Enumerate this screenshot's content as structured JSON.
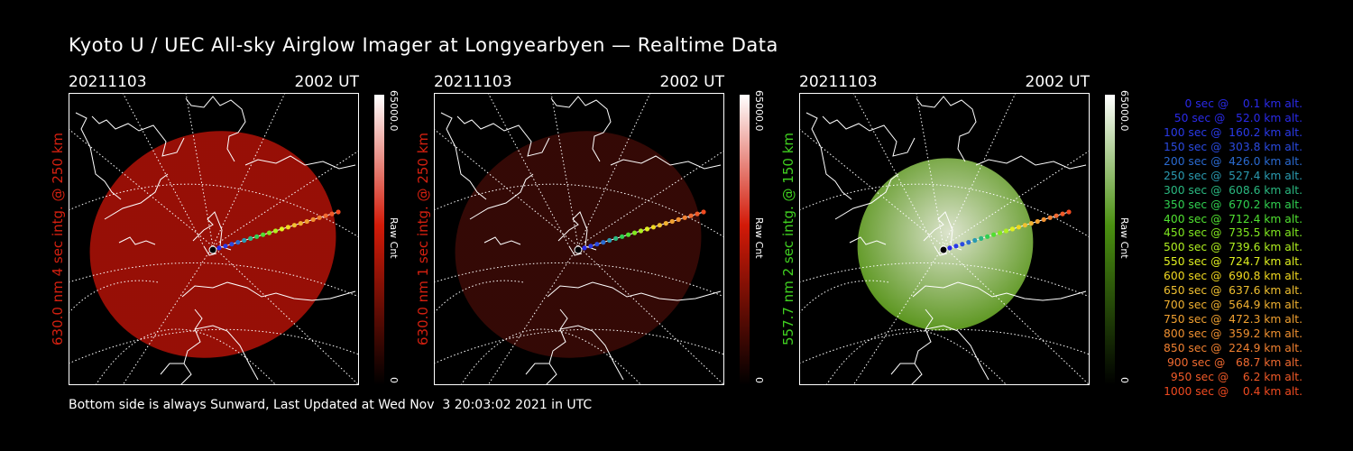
{
  "title": "Kyoto U / UEC All-sky Airglow Imager at Longyearbyen — Realtime Data",
  "panels": [
    {
      "date": "20211103",
      "time": "2002 UT",
      "ylabel": "630.0 nm 4 sec intg. @ 250 km",
      "label_color": "#d42010",
      "colorbar_max": "65000.0",
      "colorbar_min": "0",
      "colorbar_unit": "Raw Cnt",
      "image_color": "#b81208",
      "image_opacity": 0.82,
      "colorbar_color": "#d21a08"
    },
    {
      "date": "20211103",
      "time": "2002 UT",
      "ylabel": "630.0 nm 1 sec intg. @ 250 km",
      "label_color": "#d42010",
      "colorbar_max": "65000.0",
      "colorbar_min": "0",
      "colorbar_unit": "Raw Cnt",
      "image_color": "#3a0a06",
      "image_opacity": 0.9,
      "colorbar_color": "#d21a08"
    },
    {
      "date": "20211103",
      "time": "2002 UT",
      "ylabel": "557.7 nm 2 sec intg. @ 150 km",
      "label_color": "#40d020",
      "colorbar_max": "65000.0",
      "colorbar_min": "0",
      "colorbar_unit": "Raw Cnt",
      "image_color": "#5a9a18",
      "image_opacity": 0.95,
      "colorbar_color": "#4a9010"
    }
  ],
  "footer": "Bottom side is always Sunward, Last Updated at Wed Nov  3 20:03:02 2021 in UTC",
  "trajectory_legend": [
    {
      "text": "   0 sec @    0.1 km alt.",
      "color": "#2a2ae8"
    },
    {
      "text": "  50 sec @   52.0 km alt.",
      "color": "#2a2ae8"
    },
    {
      "text": " 100 sec @  160.2 km alt.",
      "color": "#2a3ae8"
    },
    {
      "text": " 150 sec @  303.8 km alt.",
      "color": "#2a4ae0"
    },
    {
      "text": " 200 sec @  426.0 km alt.",
      "color": "#2a6ad0"
    },
    {
      "text": " 250 sec @  527.4 km alt.",
      "color": "#2a9ab0"
    },
    {
      "text": " 300 sec @  608.6 km alt.",
      "color": "#2ab880"
    },
    {
      "text": " 350 sec @  670.2 km alt.",
      "color": "#30d050"
    },
    {
      "text": " 400 sec @  712.4 km alt.",
      "color": "#50e030"
    },
    {
      "text": " 450 sec @  735.5 km alt.",
      "color": "#80e820"
    },
    {
      "text": " 500 sec @  739.6 km alt.",
      "color": "#b0f020"
    },
    {
      "text": " 550 sec @  724.7 km alt.",
      "color": "#e0f020"
    },
    {
      "text": " 600 sec @  690.8 km alt.",
      "color": "#f0d820"
    },
    {
      "text": " 650 sec @  637.6 km alt.",
      "color": "#f0c030"
    },
    {
      "text": " 700 sec @  564.9 km alt.",
      "color": "#f0b030"
    },
    {
      "text": " 750 sec @  472.3 km alt.",
      "color": "#f0a030"
    },
    {
      "text": " 800 sec @  359.2 km alt.",
      "color": "#f09030"
    },
    {
      "text": " 850 sec @  224.9 km alt.",
      "color": "#f08030"
    },
    {
      "text": " 900 sec @   68.7 km alt.",
      "color": "#f06a30"
    },
    {
      "text": " 950 sec @    6.2 km alt.",
      "color": "#f05a28"
    },
    {
      "text": "1000 sec @    0.4 km alt.",
      "color": "#f04a20"
    }
  ]
}
